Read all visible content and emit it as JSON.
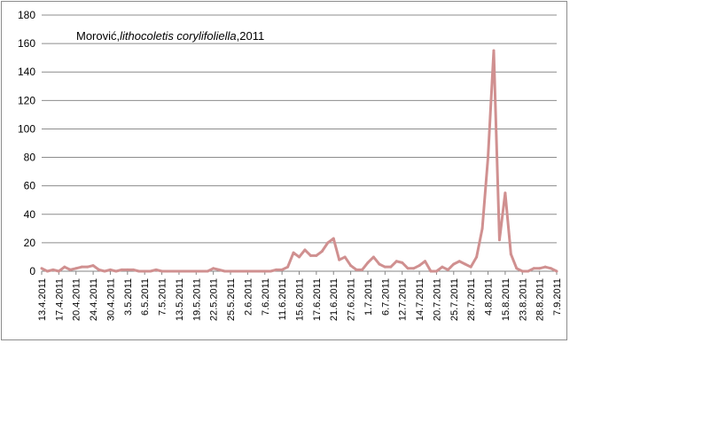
{
  "chart_data": {
    "type": "line",
    "title_parts": [
      "Morović,",
      "lithocoletis corylifoliella",
      ",2011"
    ],
    "xlabel": "",
    "ylabel": "",
    "ylim": [
      0,
      180
    ],
    "yticks": [
      0,
      20,
      40,
      60,
      80,
      100,
      120,
      140,
      160,
      180
    ],
    "grid": true,
    "legend": "none",
    "line_color": "#d09090",
    "x_tick_labels": [
      "13.4.2011",
      "17.4.2011",
      "20.4.2011",
      "24.4.2011",
      "30.4.2011",
      "3.5.2011",
      "6.5.2011",
      "7.5.2011",
      "13.5.2011",
      "19.5.2011",
      "22.5.2011",
      "25.5.2011",
      "2.6.2011",
      "7.6.2011",
      "11.6.2011",
      "15.6.2011",
      "17.6.2011",
      "21.6.2011",
      "27.6.2011",
      "1.7.2011",
      "6.7.2011",
      "12.7.2011",
      "14.7.2011",
      "20.7.2011",
      "25.7.2011",
      "28.7.2011",
      "4.8.2011",
      "15.8.2011",
      "23.8.2011",
      "28.8.2011",
      "7.9.2011"
    ],
    "values": [
      2,
      0,
      1,
      0,
      3,
      1,
      2,
      3,
      3,
      4,
      1,
      0,
      1,
      0,
      1,
      1,
      1,
      0,
      0,
      0,
      1,
      0,
      0,
      0,
      0,
      0,
      0,
      0,
      0,
      0,
      2,
      1,
      0,
      0,
      0,
      0,
      0,
      0,
      0,
      0,
      0,
      1,
      1,
      3,
      13,
      10,
      15,
      11,
      11,
      14,
      20,
      23,
      8,
      10,
      4,
      1,
      1,
      6,
      10,
      5,
      3,
      3,
      7,
      6,
      2,
      2,
      4,
      7,
      0,
      0,
      3,
      1,
      5,
      7,
      5,
      3,
      10,
      30,
      80,
      155,
      22,
      55,
      12,
      2,
      0,
      0,
      2,
      2,
      3,
      2,
      0
    ]
  }
}
